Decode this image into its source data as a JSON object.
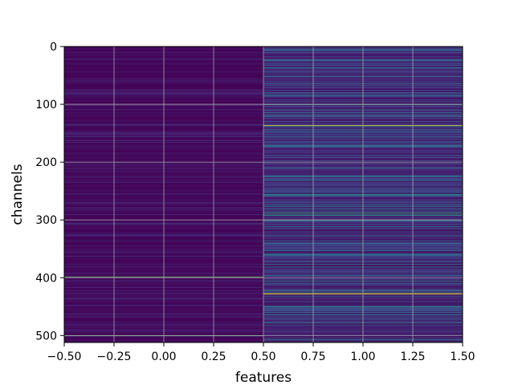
{
  "chart_data": {
    "type": "heatmap",
    "title": "",
    "xlabel": "features",
    "ylabel": "channels",
    "xlim": [
      -0.5,
      1.5
    ],
    "ylim": [
      512,
      0
    ],
    "y_inverted": true,
    "grid": true,
    "colormap": "viridis",
    "n_rows": 512,
    "n_cols": 2,
    "x_ticks": [
      "−0.50",
      "−0.25",
      "0.00",
      "0.25",
      "0.50",
      "0.75",
      "1.00",
      "1.25",
      "1.50"
    ],
    "x_tick_values": [
      -0.5,
      -0.25,
      0.0,
      0.25,
      0.5,
      0.75,
      1.0,
      1.25,
      1.5
    ],
    "y_ticks": [
      "0",
      "100",
      "200",
      "300",
      "400",
      "500"
    ],
    "y_tick_values": [
      0,
      100,
      200,
      300,
      400,
      500
    ],
    "feature_0_highlight_rows": [
      {
        "row": 134,
        "value": 0.14
      },
      {
        "row": 398,
        "value": 0.75
      },
      {
        "row": 500,
        "value": 0.7
      }
    ],
    "feature_1_highlight_rows": [
      {
        "row": 100,
        "value": 0.6
      },
      {
        "row": 136,
        "value": 0.97
      },
      {
        "row": 255,
        "value": 0.5
      },
      {
        "row": 258,
        "value": 0.45
      },
      {
        "row": 288,
        "value": 0.65
      },
      {
        "row": 291,
        "value": 0.55
      },
      {
        "row": 427,
        "value": 0.95
      },
      {
        "row": 470,
        "value": 0.4
      }
    ]
  }
}
